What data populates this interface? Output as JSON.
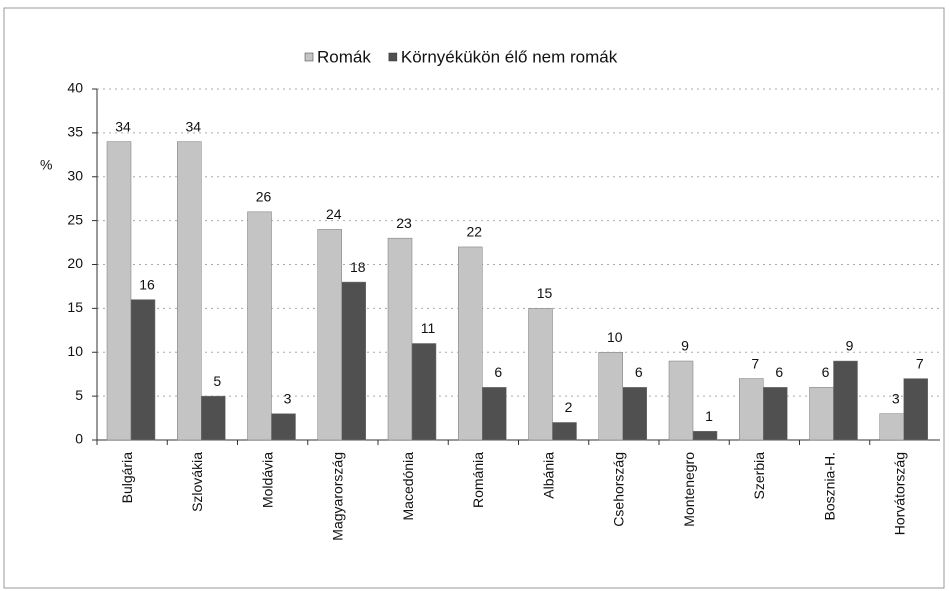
{
  "chart_data": {
    "type": "bar",
    "y_label": "%",
    "categories": [
      "Bulgária",
      "Szlovákia",
      "Moldávia",
      "Magyarország",
      "Macedónia",
      "Románia",
      "Albánia",
      "Csehország",
      "Montenegro",
      "Szerbia",
      "Bosznia-H.",
      "Horvátország"
    ],
    "series": [
      {
        "name": "Romák",
        "color": "#c4c4c4",
        "values": [
          34,
          34,
          26,
          24,
          23,
          22,
          15,
          10,
          9,
          7,
          6,
          3
        ]
      },
      {
        "name": "Környékükön élő nem romák",
        "color": "#505050",
        "values": [
          16,
          5,
          3,
          18,
          11,
          6,
          2,
          6,
          1,
          6,
          9,
          7
        ]
      }
    ],
    "ylim": [
      0,
      40
    ],
    "yticks": [
      0,
      5,
      10,
      15,
      20,
      25,
      30,
      35,
      40
    ],
    "grid": true,
    "legend": "top"
  }
}
